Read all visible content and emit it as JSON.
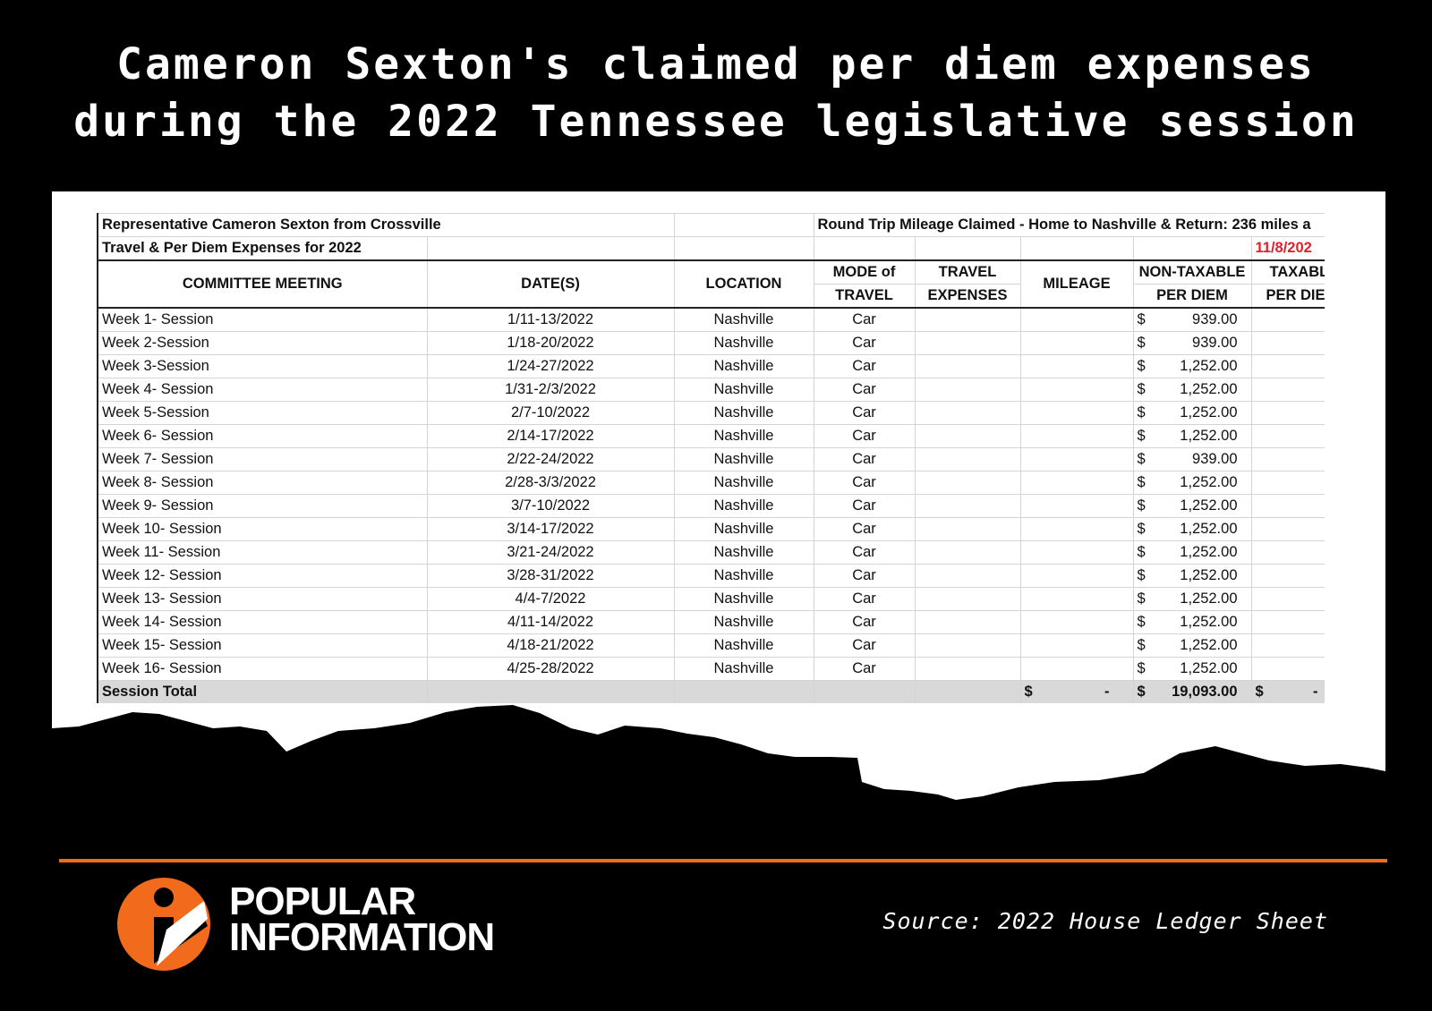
{
  "headline": {
    "line1": "Cameron Sexton's claimed per diem expenses",
    "line2": "during the 2022 Tennessee legislative session"
  },
  "ledger": {
    "title1": "Representative Cameron Sexton from Crossville",
    "title2": "Travel & Per Diem Expenses for 2022",
    "mileage_note": "Round Trip Mileage Claimed - Home to Nashville & Return: 236 miles a",
    "date_stamp": "11/8/202",
    "headers": {
      "committee": "COMMITTEE MEETING",
      "dates": "DATE(S)",
      "location": "LOCATION",
      "mode1": "MODE of",
      "mode2": "TRAVEL",
      "travel1": "TRAVEL",
      "travel2": "EXPENSES",
      "mileage": "MILEAGE",
      "nontax1": "NON-TAXABLE",
      "nontax2": "PER DIEM",
      "tax1": "TAXABL",
      "tax2": "PER DIE"
    },
    "rows": [
      {
        "meeting": "Week 1- Session",
        "dates": "1/11-13/2022",
        "location": "Nashville",
        "mode": "Car",
        "currency": "$",
        "per_diem": "939.00"
      },
      {
        "meeting": "Week 2-Session",
        "dates": "1/18-20/2022",
        "location": "Nashville",
        "mode": "Car",
        "currency": "$",
        "per_diem": "939.00"
      },
      {
        "meeting": "Week 3-Session",
        "dates": "1/24-27/2022",
        "location": "Nashville",
        "mode": "Car",
        "currency": "$",
        "per_diem": "1,252.00"
      },
      {
        "meeting": "Week 4- Session",
        "dates": "1/31-2/3/2022",
        "location": "Nashville",
        "mode": "Car",
        "currency": "$",
        "per_diem": "1,252.00"
      },
      {
        "meeting": "Week 5-Session",
        "dates": "2/7-10/2022",
        "location": "Nashville",
        "mode": "Car",
        "currency": "$",
        "per_diem": "1,252.00"
      },
      {
        "meeting": "Week 6- Session",
        "dates": "2/14-17/2022",
        "location": "Nashville",
        "mode": "Car",
        "currency": "$",
        "per_diem": "1,252.00"
      },
      {
        "meeting": "Week 7- Session",
        "dates": "2/22-24/2022",
        "location": "Nashville",
        "mode": "Car",
        "currency": "$",
        "per_diem": "939.00"
      },
      {
        "meeting": "Week 8- Session",
        "dates": "2/28-3/3/2022",
        "location": "Nashville",
        "mode": "Car",
        "currency": "$",
        "per_diem": "1,252.00"
      },
      {
        "meeting": "Week 9- Session",
        "dates": "3/7-10/2022",
        "location": "Nashville",
        "mode": "Car",
        "currency": "$",
        "per_diem": "1,252.00"
      },
      {
        "meeting": "Week 10- Session",
        "dates": "3/14-17/2022",
        "location": "Nashville",
        "mode": "Car",
        "currency": "$",
        "per_diem": "1,252.00"
      },
      {
        "meeting": "Week 11- Session",
        "dates": "3/21-24/2022",
        "location": "Nashville",
        "mode": "Car",
        "currency": "$",
        "per_diem": "1,252.00"
      },
      {
        "meeting": "Week 12- Session",
        "dates": "3/28-31/2022",
        "location": "Nashville",
        "mode": "Car",
        "currency": "$",
        "per_diem": "1,252.00"
      },
      {
        "meeting": "Week 13- Session",
        "dates": "4/4-7/2022",
        "location": "Nashville",
        "mode": "Car",
        "currency": "$",
        "per_diem": "1,252.00"
      },
      {
        "meeting": "Week 14- Session",
        "dates": "4/11-14/2022",
        "location": "Nashville",
        "mode": "Car",
        "currency": "$",
        "per_diem": "1,252.00"
      },
      {
        "meeting": "Week 15- Session",
        "dates": "4/18-21/2022",
        "location": "Nashville",
        "mode": "Car",
        "currency": "$",
        "per_diem": "1,252.00"
      },
      {
        "meeting": "Week 16- Session",
        "dates": "4/25-28/2022",
        "location": "Nashville",
        "mode": "Car",
        "currency": "$",
        "per_diem": "1,252.00"
      }
    ],
    "total": {
      "label": "Session Total",
      "mileage_currency": "$",
      "mileage_value": "-",
      "per_diem_currency": "$",
      "per_diem_value": "19,093.00",
      "taxable_currency": "$",
      "taxable_value": "-"
    }
  },
  "footer": {
    "brand_line1": "POPULAR",
    "brand_line2": "INFORMATION",
    "source": "Source: 2022 House Ledger Sheet"
  },
  "colors": {
    "accent": "#f26b1d",
    "date_red": "#e0202a"
  }
}
